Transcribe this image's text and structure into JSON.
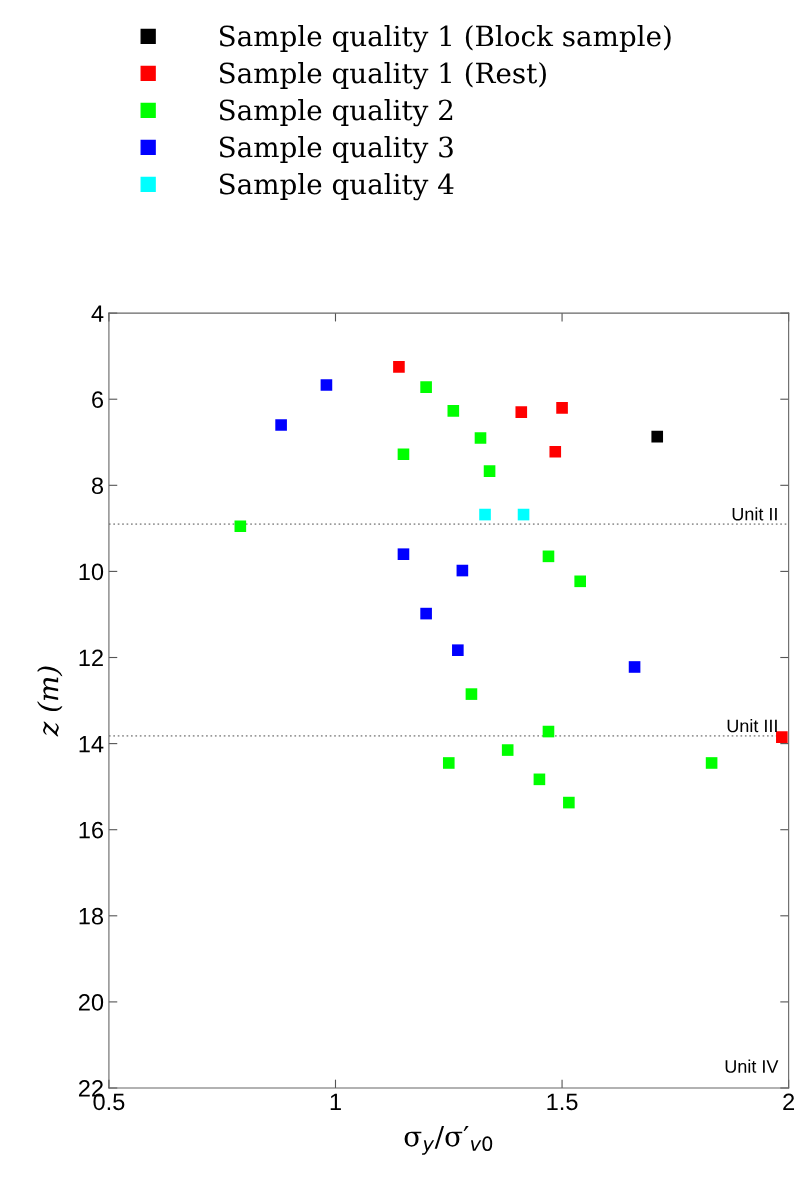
{
  "chart_data": {
    "type": "scatter",
    "xlabel": "σ$_{y}$/σ′$_{v0}$",
    "ylabel": "z (m)",
    "xlim": [
      0.5,
      2
    ],
    "xticks": [
      0.5,
      1,
      1.5,
      2
    ],
    "ylim": [
      22,
      4
    ],
    "yticks": [
      4,
      6,
      8,
      10,
      12,
      14,
      16,
      18,
      20,
      22
    ],
    "marker": "square",
    "grid": false,
    "legend": "top",
    "series": [
      {
        "name": "Sample quality 1 (Block sample)",
        "color": "#000000",
        "x": [
          1.71
        ],
        "values": [
          6.87
        ]
      },
      {
        "name": "Sample quality 1 (Rest)",
        "color": "#ff0000",
        "x": [
          1.14,
          1.41,
          1.5,
          1.485,
          1.985
        ],
        "values": [
          5.25,
          6.3,
          6.2,
          7.22,
          13.85
        ]
      },
      {
        "name": "Sample quality 2",
        "color": "#00ff00",
        "x": [
          1.2,
          1.26,
          1.32,
          1.15,
          1.34,
          0.79,
          1.47,
          1.54,
          1.3,
          1.47,
          1.38,
          1.25,
          1.83,
          1.45,
          1.515
        ],
        "values": [
          5.72,
          6.27,
          6.9,
          7.28,
          7.67,
          8.95,
          9.65,
          10.23,
          12.85,
          13.72,
          14.15,
          14.45,
          14.45,
          14.83,
          15.37
        ]
      },
      {
        "name": "Sample quality 3",
        "color": "#0000ff",
        "x": [
          0.98,
          0.88,
          1.15,
          1.28,
          1.2,
          1.27,
          1.66
        ],
        "values": [
          5.67,
          6.6,
          9.6,
          9.98,
          10.98,
          11.83,
          12.22
        ]
      },
      {
        "name": "Sample quality 4",
        "color": "#00ffff",
        "x": [
          1.33,
          1.415
        ],
        "values": [
          8.68,
          8.68
        ]
      }
    ],
    "ref_lines": [
      {
        "axis": "y",
        "value": 8.9,
        "label": "Unit II",
        "color": "#999999",
        "line_style": "dotted"
      },
      {
        "axis": "y",
        "value": 13.82,
        "label": "Unit III",
        "color": "#999999",
        "line_style": "dotted"
      }
    ],
    "annotations": [
      "Unit IV"
    ]
  }
}
